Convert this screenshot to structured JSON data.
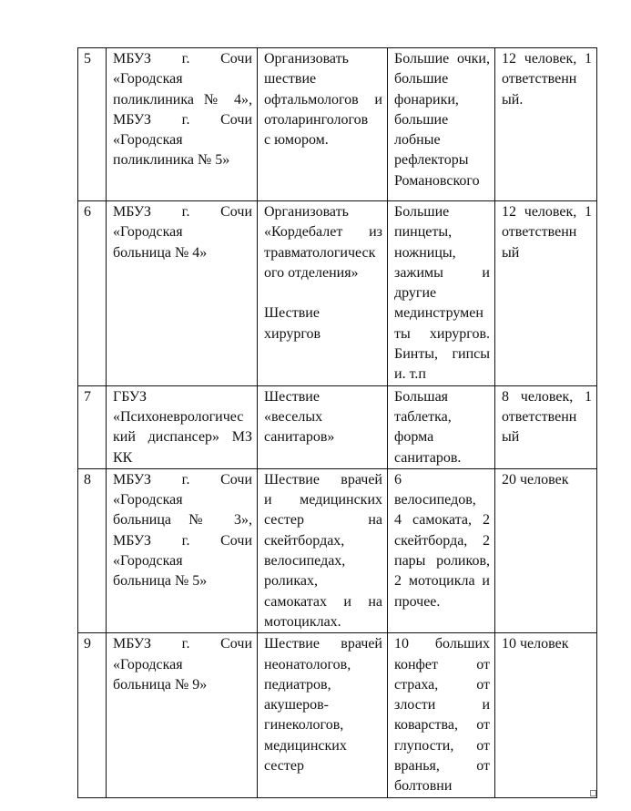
{
  "table": {
    "rows": [
      {
        "cells": [
          [
            [
              "5"
            ]
          ],
          [
            [
              "МБУЗ г. Сочи",
              "«Городская",
              "поликлиника № 4»,",
              "МБУЗ г. Сочи",
              "«Городская",
              "поликлиника № 5»"
            ]
          ],
          [
            [
              "Организовать",
              "шествие",
              "офтальмологов и",
              "отоларингологов",
              "с юмором."
            ]
          ],
          [
            [
              "Большие очки,",
              "большие",
              "фонарики,",
              "большие",
              "лобные",
              "рефлекторы",
              "Романовского"
            ]
          ],
          [
            [
              "12 человек, 1",
              "ответственн",
              "ый."
            ]
          ]
        ]
      },
      {
        "cells": [
          [
            [
              "6"
            ]
          ],
          [
            [
              "МБУЗ г. Сочи",
              "«Городская",
              "больница № 4»"
            ]
          ],
          [
            [
              "Организовать",
              "«Кордебалет из",
              "травматологическ",
              "ого отделения»"
            ],
            [
              ""
            ],
            [
              "Шествие",
              "хирургов"
            ]
          ],
          [
            [
              "Большие",
              "пинцеты,",
              "ножницы,",
              "зажимы и",
              "другие",
              "мединструмен",
              "ты хирургов.",
              "Бинты, гипсы",
              "и. т.п"
            ]
          ],
          [
            [
              "12 человек, 1",
              "ответственн",
              "ый"
            ]
          ]
        ]
      },
      {
        "cells": [
          [
            [
              "7"
            ]
          ],
          [
            [
              "ГБУЗ",
              "«Психоневрологичес",
              "кий диспансер» МЗ",
              "КК"
            ]
          ],
          [
            [
              "Шествие",
              "«веселых",
              "санитаров»"
            ]
          ],
          [
            [
              "Большая",
              "таблетка,",
              "форма",
              "санитаров."
            ]
          ],
          [
            [
              "8 человек, 1",
              "ответственн",
              "ый"
            ]
          ]
        ]
      },
      {
        "cells": [
          [
            [
              "8"
            ]
          ],
          [
            [
              "МБУЗ г. Сочи",
              "«Городская",
              "больница № 3»,",
              "МБУЗ г. Сочи",
              "«Городская",
              "больница № 5»"
            ]
          ],
          [
            [
              "Шествие врачей",
              "и медицинских",
              "сестер на",
              "скейтбордах,",
              "велосипедах,",
              "роликах,",
              "самокатах и на",
              "мотоциклах."
            ]
          ],
          [
            [
              "6",
              "велосипедов,",
              "4 самоката, 2",
              "скейтборда, 2",
              "пары роликов,",
              "2 мотоцикла и",
              "прочее."
            ]
          ],
          [
            [
              "20 человек"
            ]
          ]
        ]
      },
      {
        "cells": [
          [
            [
              "9"
            ]
          ],
          [
            [
              "МБУЗ г. Сочи",
              "«Городская",
              "больница № 9»"
            ]
          ],
          [
            [
              "Шествие врачей",
              "неонатологов,",
              "педиатров,",
              "акушеров-",
              "гинекологов,",
              "медицинских",
              "сестер"
            ]
          ],
          [
            [
              "10 больших",
              "конфет от",
              "страха, от",
              "злости и",
              "коварства, от",
              "глупости, от",
              "вранья, от",
              "болтовни"
            ]
          ],
          [
            [
              "10 человек"
            ]
          ]
        ]
      }
    ]
  }
}
